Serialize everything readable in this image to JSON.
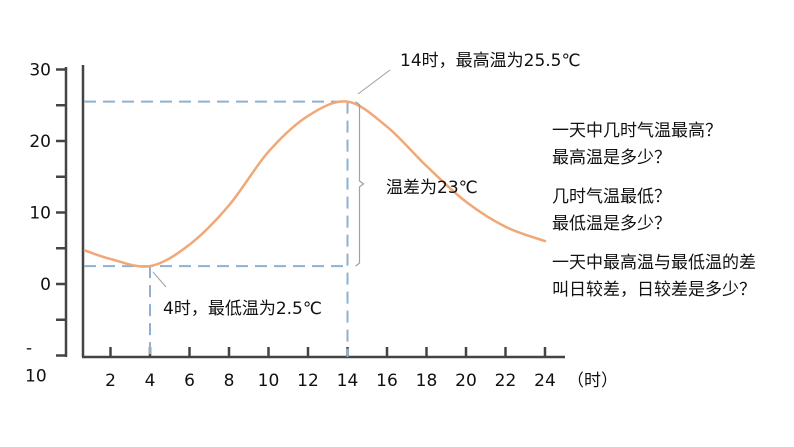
{
  "chart_data": {
    "type": "line",
    "title": "",
    "xlabel": "（时）",
    "ylabel": "",
    "x_ticks": [
      2,
      4,
      6,
      8,
      10,
      12,
      14,
      16,
      18,
      20,
      22,
      24
    ],
    "y_ticks": [
      30,
      20,
      10,
      0,
      -10
    ],
    "y_tick_labels": [
      "30",
      "20",
      "10",
      "0",
      "-\n10"
    ],
    "xlim": [
      0,
      24
    ],
    "ylim": [
      -10,
      30
    ],
    "grid": false,
    "series": [
      {
        "name": "气温",
        "color": "#f0a878",
        "x": [
          0.7,
          2,
          4,
          6,
          8,
          10,
          12,
          14,
          16,
          18,
          20,
          22,
          24
        ],
        "values": [
          4.7,
          3.5,
          2.5,
          5.5,
          11,
          18.5,
          23.5,
          25.5,
          22,
          16.5,
          11.5,
          8,
          6
        ]
      }
    ],
    "reference_lines": {
      "color": "#8fb0d0",
      "max_point": {
        "hour": 14,
        "temp": 25.5
      },
      "min_point": {
        "hour": 4,
        "temp": 2.5
      }
    },
    "annotations": [
      {
        "id": "max",
        "text": "14时，最高温为25.5℃"
      },
      {
        "id": "min",
        "text": "4时，最低温为2.5℃"
      },
      {
        "id": "range",
        "text": "温差为23℃"
      }
    ]
  },
  "axis": {
    "x_unit": "（时）"
  },
  "questions": [
    "一天中几时气温最高？",
    "最高温是多少？",
    "几时气温最低？",
    "最低温是多少？",
    "一天中最高温与最低温的差",
    "叫日较差，日较差是多少？"
  ]
}
